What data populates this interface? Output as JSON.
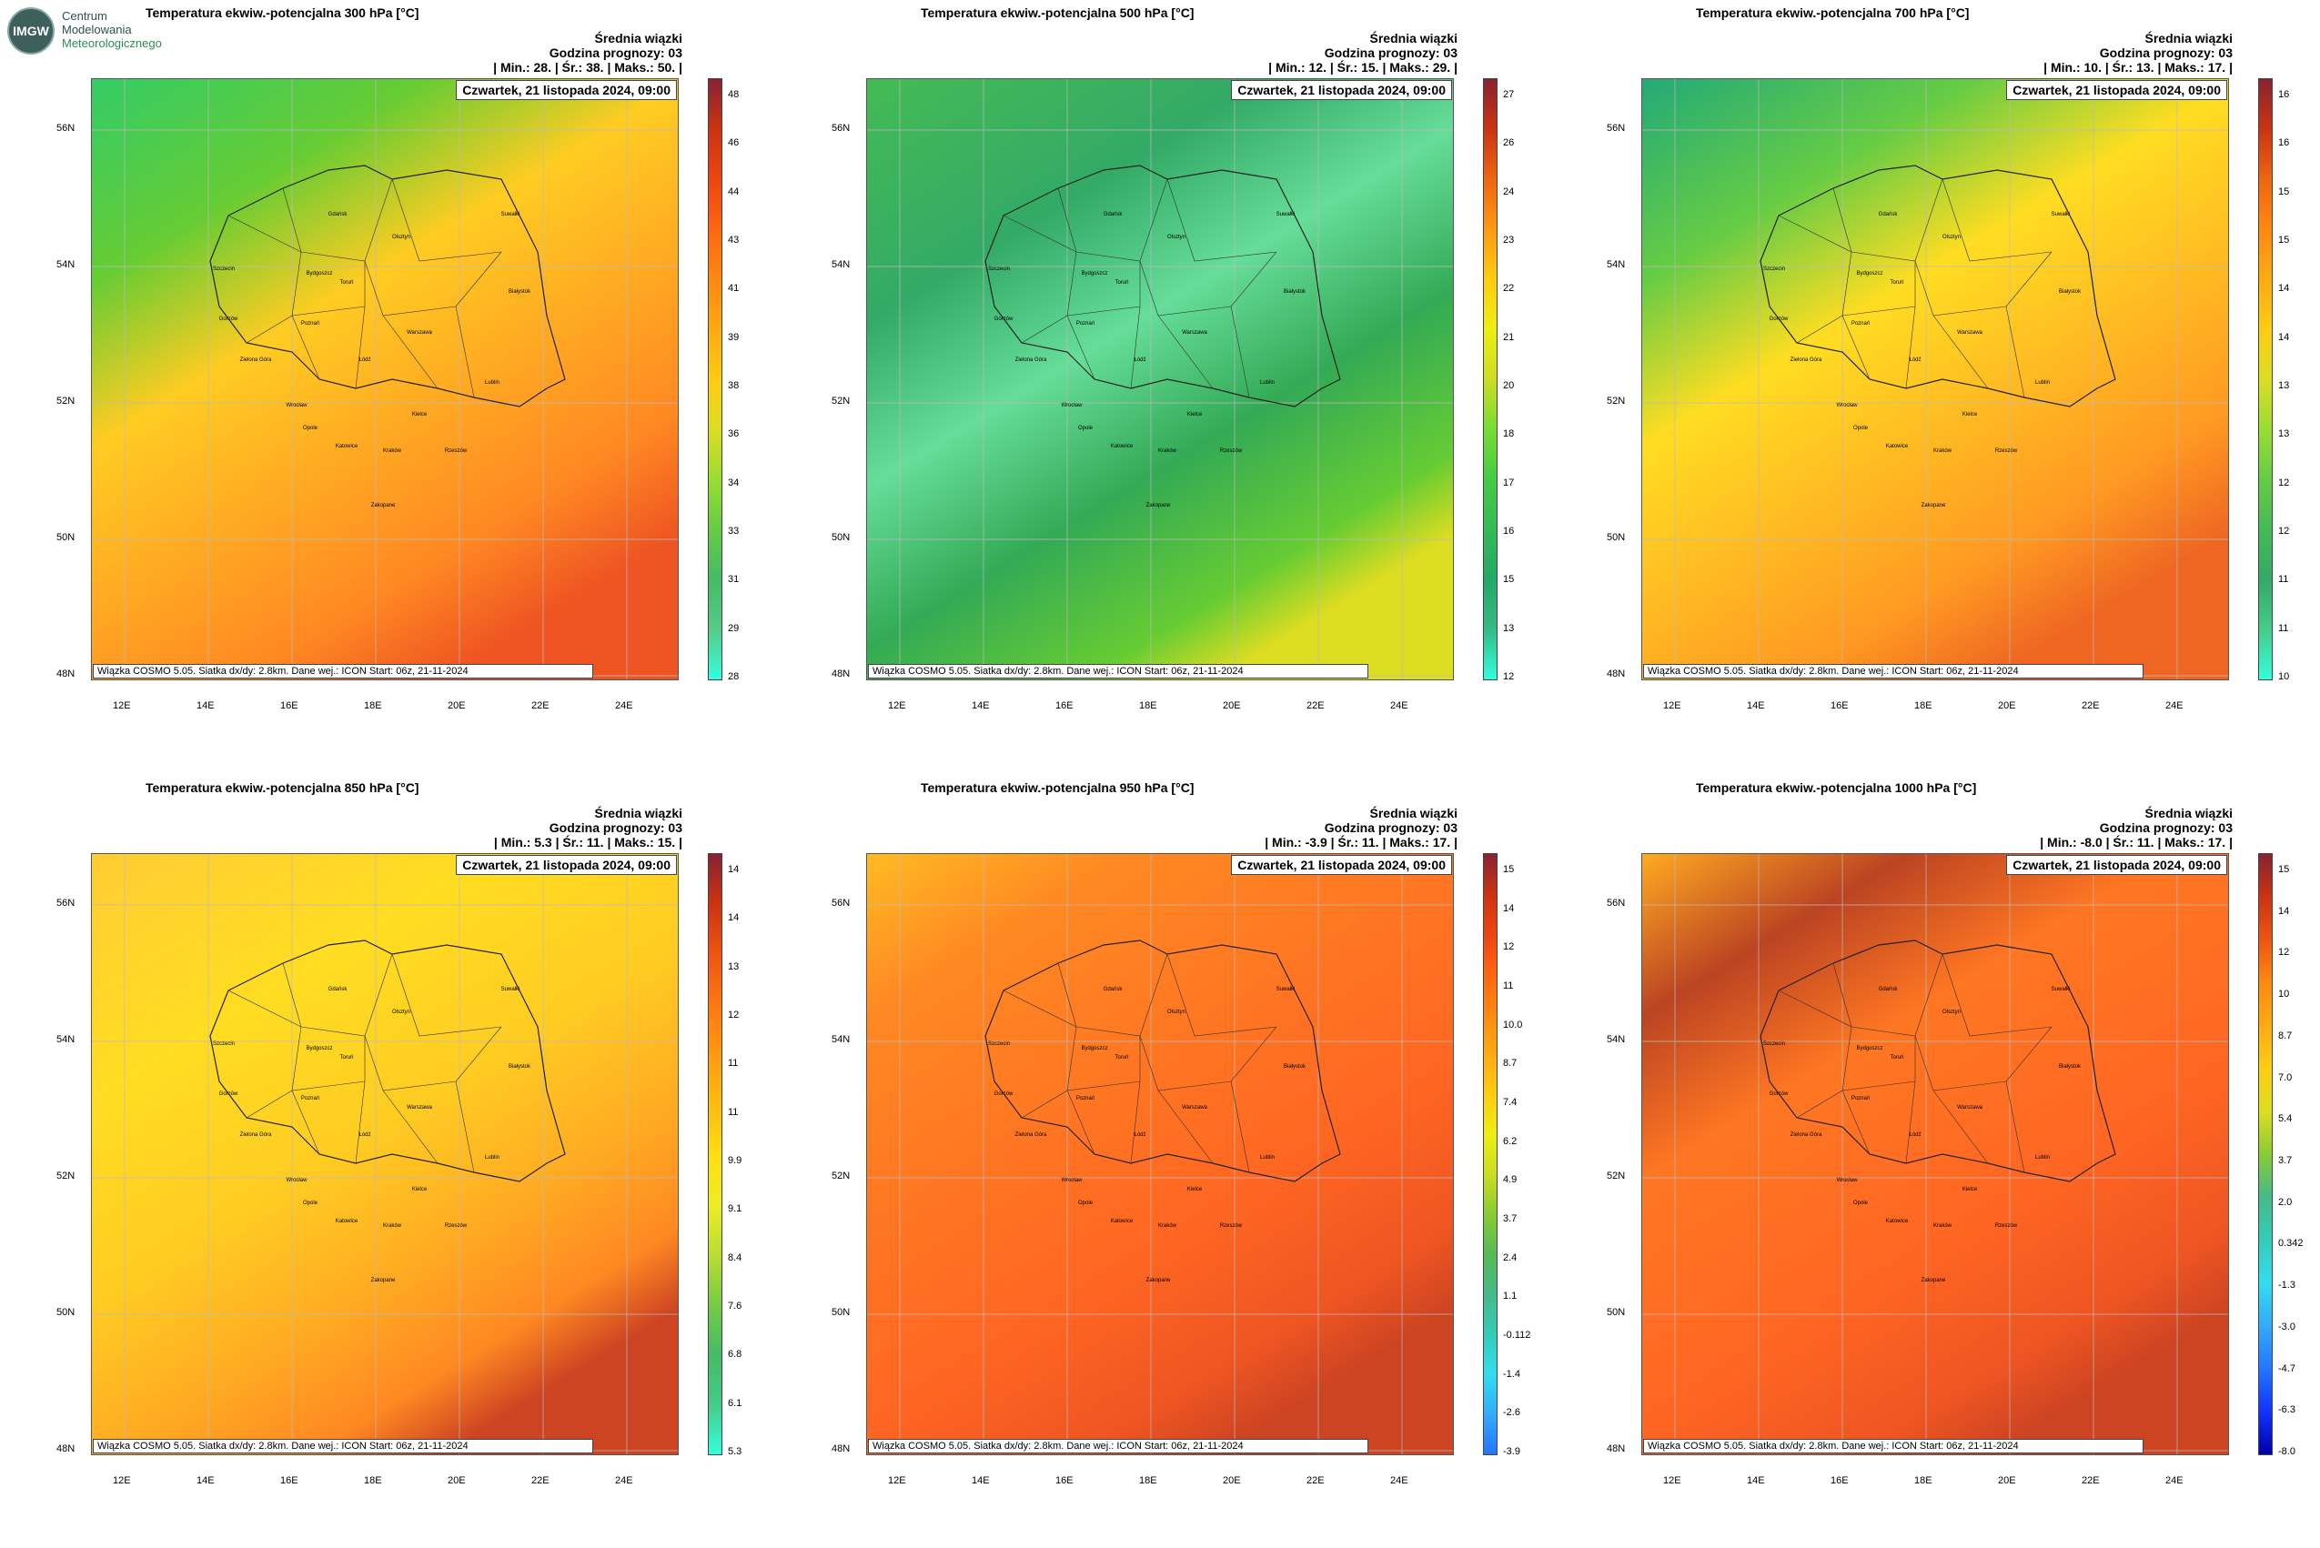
{
  "logo": {
    "initials": "IMGW",
    "lines": [
      "Centrum",
      "Modelowania",
      "Meteorologicznego"
    ]
  },
  "panels": [
    {
      "title": "Temperatura ekwiw.-potencjalna 300 hPa [°C]",
      "unit_sup": "o",
      "stats_title": "Średnia wiązki",
      "forecast_hour": "Godzina prognozy: 03",
      "minmax": "| Min.:    28. | Śr.:    38. | Maks.:    50. |",
      "date": "Czwartek, 21 listopada 2024, 09:00",
      "footer": "Wiązka COSMO 5.05. Siatka dx/dy: 2.8km. Dane wej.: ICON Start: 06z, 21-11-2024",
      "scale": [
        "28",
        "29",
        "31",
        "33",
        "34",
        "36",
        "38",
        "39",
        "41",
        "43",
        "44",
        "46",
        "48"
      ],
      "style": "warm300"
    },
    {
      "title": "Temperatura ekwiw.-potencjalna 500 hPa [°C]",
      "unit_sup": "o",
      "stats_title": "Średnia wiązki",
      "forecast_hour": "Godzina prognozy: 03",
      "minmax": "| Min.:    12. | Śr.:    15. | Maks.:    29. |",
      "date": "Czwartek, 21 listopada 2024, 09:00",
      "footer": "Wiązka COSMO 5.05. Siatka dx/dy: 2.8km. Dane wej.: ICON Start: 06z, 21-11-2024",
      "scale": [
        "12",
        "13",
        "15",
        "16",
        "17",
        "18",
        "20",
        "21",
        "22",
        "23",
        "24",
        "26",
        "27"
      ],
      "style": "green500"
    },
    {
      "title": "Temperatura ekwiw.-potencjalna 700 hPa [°C]",
      "unit_sup": "o",
      "stats_title": "Średnia wiązki",
      "forecast_hour": "Godzina prognozy: 03",
      "minmax": "| Min.:    10. | Śr.:    13. | Maks.:    17. |",
      "date": "Czwartek, 21 listopada 2024, 09:00",
      "footer": "Wiązka COSMO 5.05. Siatka dx/dy: 2.8km. Dane wej.: ICON Start: 06z, 21-11-2024",
      "scale": [
        "10",
        "11",
        "11",
        "12",
        "12",
        "13",
        "13",
        "14",
        "14",
        "15",
        "15",
        "16",
        "16"
      ],
      "style": "mix700"
    },
    {
      "title": "Temperatura ekwiw.-potencjalna 850 hPa [°C]",
      "unit_sup": "o",
      "stats_title": "Średnia wiązki",
      "forecast_hour": "Godzina prognozy: 03",
      "minmax": "| Min.:    5.3 | Śr.:    11. | Maks.:    15. |",
      "date": "Czwartek, 21 listopada 2024, 09:00",
      "footer": "Wiązka COSMO 5.05. Siatka dx/dy: 2.8km. Dane wej.: ICON Start: 06z, 21-11-2024",
      "scale": [
        "5.3",
        "6.1",
        "6.8",
        "7.6",
        "8.4",
        "9.1",
        "9.9",
        "11",
        "11",
        "12",
        "13",
        "14",
        "14"
      ],
      "style": "warm850"
    },
    {
      "title": "Temperatura ekwiw.-potencjalna 950 hPa [°C]",
      "unit_sup": "o",
      "stats_title": "Średnia wiązki",
      "forecast_hour": "Godzina prognozy: 03",
      "minmax": "| Min.:    -3.9 | Śr.:    11. | Maks.:    17. |",
      "date": "Czwartek, 21 listopada 2024, 09:00",
      "footer": "Wiązka COSMO 5.05. Siatka dx/dy: 2.8km. Dane wej.: ICON Start: 06z, 21-11-2024",
      "scale": [
        "-3.9",
        "-2.6",
        "-1.4",
        "-0.112",
        "1.1",
        "2.4",
        "3.7",
        "4.9",
        "6.2",
        "7.4",
        "8.7",
        "10.0",
        "11",
        "12",
        "14",
        "15"
      ],
      "style": "warm950"
    },
    {
      "title": "Temperatura ekwiw.-potencjalna 1000 hPa [°C]",
      "unit_sup": "o",
      "stats_title": "Średnia wiązki",
      "forecast_hour": "Godzina prognozy: 03",
      "minmax": "| Min.:    -8.0 | Śr.:    11. | Maks.:    17. |",
      "date": "Czwartek, 21 listopada 2024, 09:00",
      "footer": "Wiązka COSMO 5.05. Siatka dx/dy: 2.8km. Dane wej.: ICON Start: 06z, 21-11-2024",
      "scale": [
        "-8.0",
        "-6.3",
        "-4.7",
        "-3.0",
        "-1.3",
        "0.342",
        "2.0",
        "3.7",
        "5.4",
        "7.0",
        "8.7",
        "10",
        "12",
        "14",
        "15"
      ],
      "style": "warm1000"
    }
  ],
  "lat_labels": [
    "56N",
    "54N",
    "52N",
    "50N",
    "48N"
  ],
  "lon_labels": [
    "12E",
    "14E",
    "16E",
    "18E",
    "20E",
    "22E",
    "24E"
  ],
  "cities": [
    "Gdańsk",
    "Olsztyn",
    "Suwałki",
    "Szczecin",
    "Bydgoszcz",
    "Toruń",
    "Białystok",
    "Gorzów",
    "Poznań",
    "Warszawa",
    "Zielona Góra",
    "Łódź",
    "Wrocław",
    "Lublin",
    "Opole",
    "Kielce",
    "Katowice",
    "Kraków",
    "Rzeszów",
    "Zakopane"
  ]
}
